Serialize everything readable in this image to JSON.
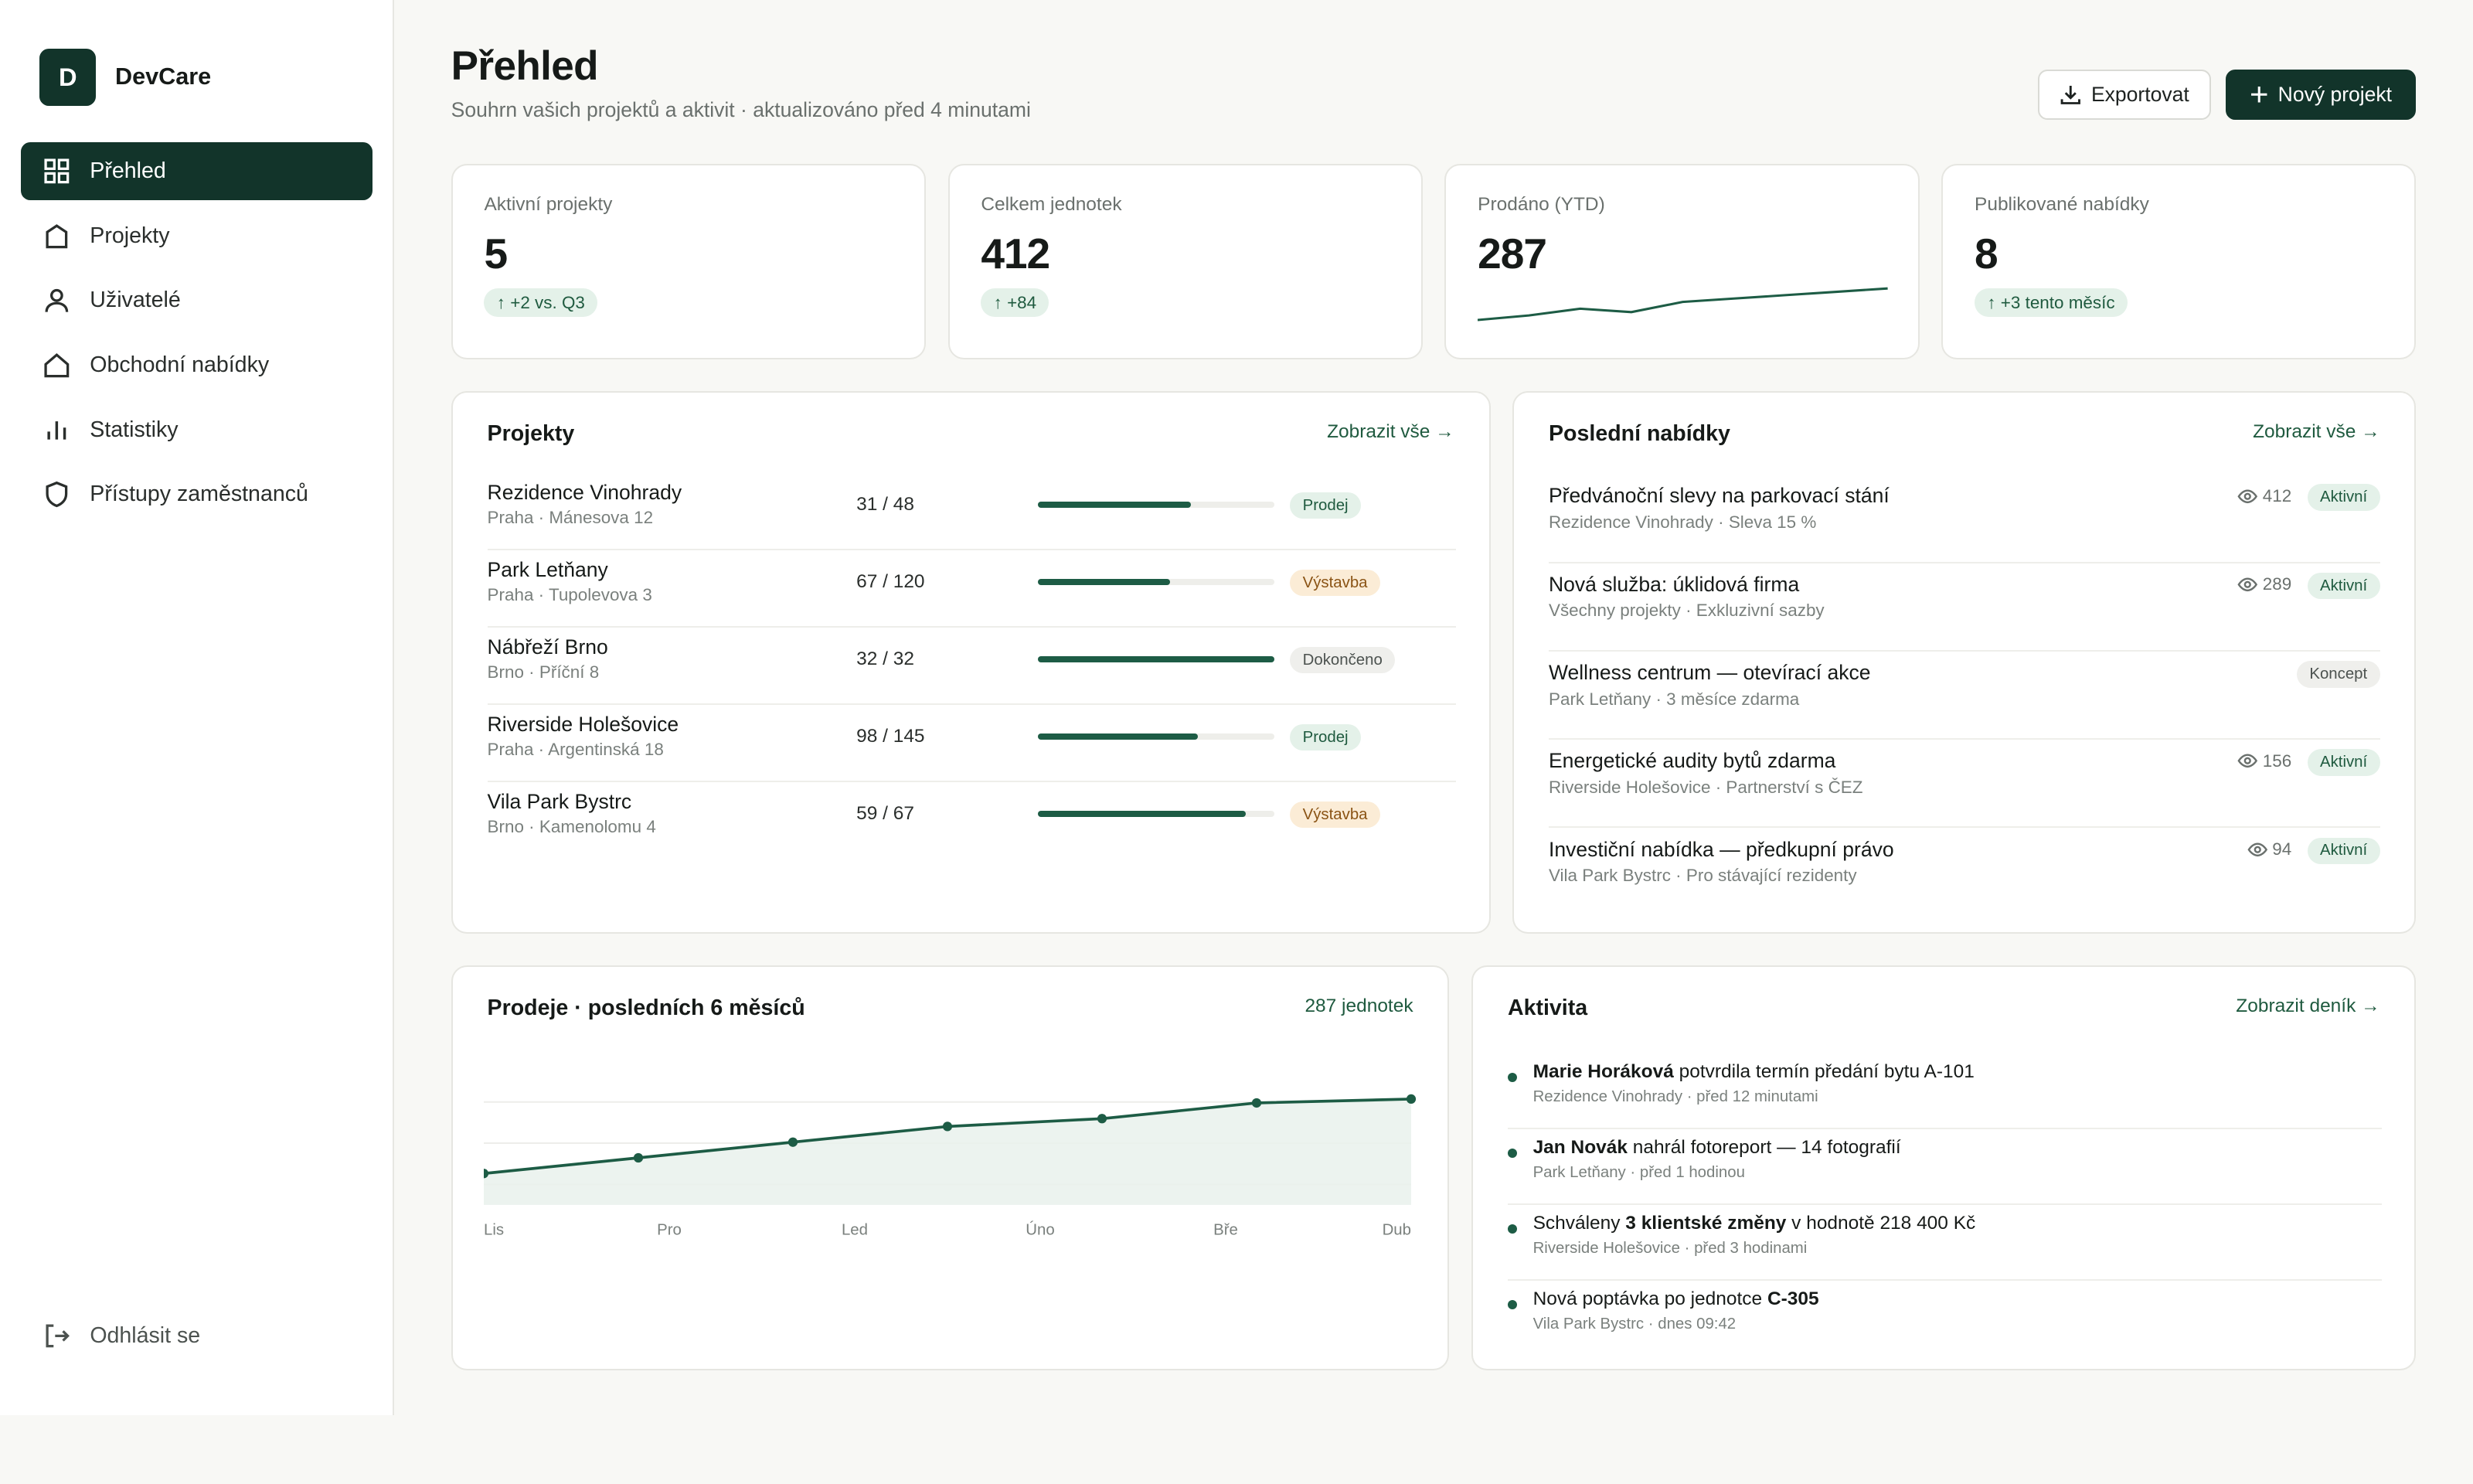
{
  "brand": {
    "logo_letter": "D",
    "name": "DevCare"
  },
  "nav": [
    {
      "label": "Přehled",
      "icon": "grid-icon",
      "active": true
    },
    {
      "label": "Projekty",
      "icon": "home-icon"
    },
    {
      "label": "Uživatelé",
      "icon": "user-icon"
    },
    {
      "label": "Obchodní nabídky",
      "icon": "house-icon"
    },
    {
      "label": "Statistiky",
      "icon": "bar-chart-icon"
    },
    {
      "label": "Přístupy zaměstnanců",
      "icon": "shield-icon"
    }
  ],
  "logout_label": "Odhlásit se",
  "header": {
    "title": "Přehled",
    "subtitle": "Souhrn vašich projektů a aktivit · aktualizováno před 4 minutami",
    "export_label": "Exportovat",
    "new_label": "Nový projekt"
  },
  "kpis": [
    {
      "label": "Aktivní projekty",
      "value": "5",
      "badge": "↑ +2 vs. Q3"
    },
    {
      "label": "Celkem jednotek",
      "value": "412",
      "badge": "↑ +84"
    },
    {
      "label": "Prodáno (YTD)",
      "value": "287",
      "sparkline": [
        0,
        4,
        10,
        7,
        16,
        19,
        22,
        25,
        28
      ]
    },
    {
      "label": "Publikované nabídky",
      "value": "8",
      "badge": "↑ +3 tento měsíc"
    }
  ],
  "projects": {
    "title": "Projekty",
    "link": "Zobrazit vše →",
    "rows": [
      {
        "name": "Rezidence Vinohrady",
        "location": "Praha · Mánesova 12",
        "units": "31 / 48",
        "progress": 0.646,
        "status": "Prodej",
        "status_tone": "green"
      },
      {
        "name": "Park Letňany",
        "location": "Praha · Tupolevova 3",
        "units": "67 / 120",
        "progress": 0.558,
        "status": "Výstavba",
        "status_tone": "orange"
      },
      {
        "name": "Nábřeží Brno",
        "location": "Brno · Příční 8",
        "units": "32 / 32",
        "progress": 1.0,
        "status": "Dokončeno",
        "status_tone": "gray"
      },
      {
        "name": "Riverside Holešovice",
        "location": "Praha · Argentinská 18",
        "units": "98 / 145",
        "progress": 0.676,
        "status": "Prodej",
        "status_tone": "green"
      },
      {
        "name": "Vila Park Bystrc",
        "location": "Brno · Kamenolomu 4",
        "units": "59 / 67",
        "progress": 0.881,
        "status": "Výstavba",
        "status_tone": "orange"
      }
    ]
  },
  "offers": {
    "title": "Poslední nabídky",
    "link": "Zobrazit vše →",
    "rows": [
      {
        "title": "Předvánoční slevy na parkovací stání",
        "sub": "Rezidence Vinohrady · Sleva 15 %",
        "views": "412",
        "status": "Aktivní",
        "status_tone": "green"
      },
      {
        "title": "Nová služba: úklidová firma",
        "sub": "Všechny projekty · Exkluzivní sazby",
        "views": "289",
        "status": "Aktivní",
        "status_tone": "green"
      },
      {
        "title": "Wellness centrum — otevírací akce",
        "sub": "Park Letňany · 3 měsíce zdarma",
        "views": "",
        "status": "Koncept",
        "status_tone": "gray"
      },
      {
        "title": "Energetické audity bytů zdarma",
        "sub": "Riverside Holešovice · Partnerství s ČEZ",
        "views": "156",
        "status": "Aktivní",
        "status_tone": "green"
      },
      {
        "title": "Investiční nabídka — předkupní právo",
        "sub": "Vila Park Bystrc · Pro stávající rezidenty",
        "views": "94",
        "status": "Aktivní",
        "status_tone": "green"
      }
    ]
  },
  "sales": {
    "title": "Prodeje · posledních 6 měsíců",
    "total": "287 jednotek"
  },
  "chart_data": {
    "type": "area",
    "categories": [
      "Lis",
      "Pro",
      "Led",
      "Úno",
      "Bře",
      "Dub"
    ],
    "x": [
      0,
      1,
      2,
      3,
      4,
      5,
      6
    ],
    "values": [
      8,
      12,
      16,
      20,
      22,
      26,
      27
    ],
    "ylim": [
      0,
      35
    ],
    "grid": true
  },
  "activity": {
    "title": "Aktivita",
    "link": "Zobrazit deník →",
    "rows": [
      {
        "bold": "Marie Horáková",
        "text": " potvrdila termín předání bytu A-101",
        "meta": "Rezidence Vinohrady · před 12 minutami"
      },
      {
        "bold": "Jan Novák",
        "text": " nahrál fotoreport — 14 fotografií",
        "meta": "Park Letňany · před 1 hodinou"
      },
      {
        "pre": "Schváleny ",
        "bold": "3 klientské změny",
        "text": " v hodnotě 218 400 Kč",
        "meta": "Riverside Holešovice · před 3 hodinami"
      },
      {
        "pre": "Nová poptávka po jednotce ",
        "bold": "C-305",
        "text": "",
        "meta": "Vila Park Bystrc · dnes 09:42"
      }
    ]
  },
  "colors": {
    "brand": "#12342a",
    "accent": "#1d5c45",
    "bg": "#f8f8f5"
  }
}
